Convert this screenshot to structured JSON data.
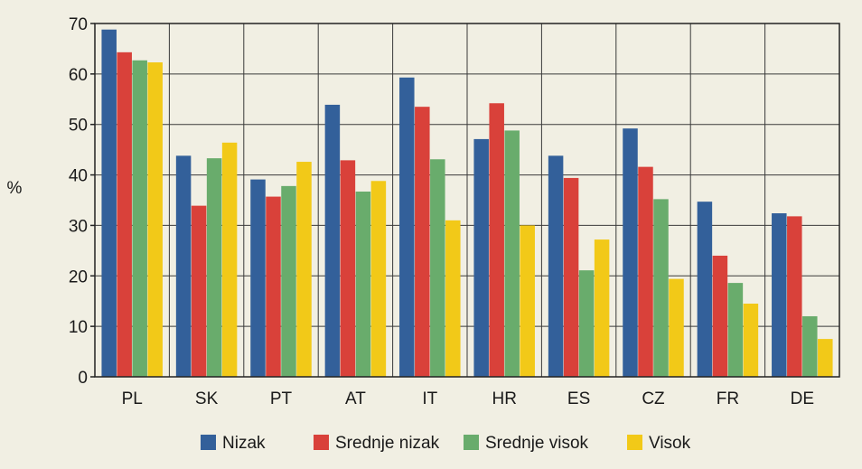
{
  "chart_data": {
    "type": "bar",
    "ylabel": "%",
    "ylim": [
      0,
      70
    ],
    "yticks": [
      0,
      10,
      20,
      30,
      40,
      50,
      60,
      70
    ],
    "grid": true,
    "legend_position": "bottom",
    "categories": [
      "PL",
      "SK",
      "PT",
      "AT",
      "IT",
      "HR",
      "ES",
      "CZ",
      "FR",
      "DE"
    ],
    "series": [
      {
        "name": "Nizak",
        "color": "#33609a",
        "values": [
          68.8,
          43.8,
          39.1,
          53.9,
          59.3,
          47.1,
          43.8,
          49.2,
          34.7,
          32.4
        ]
      },
      {
        "name": "Srednje nizak",
        "color": "#d9413a",
        "values": [
          64.3,
          33.9,
          35.7,
          42.9,
          53.5,
          54.2,
          39.4,
          41.6,
          24.0,
          31.8
        ]
      },
      {
        "name": "Srednje visok",
        "color": "#69ac6c",
        "values": [
          62.7,
          43.3,
          37.8,
          36.7,
          43.1,
          48.8,
          21.1,
          35.2,
          18.6,
          12.0
        ]
      },
      {
        "name": "Visok",
        "color": "#f2c918",
        "values": [
          62.3,
          46.4,
          42.6,
          38.8,
          31.0,
          30.0,
          27.2,
          19.4,
          14.5,
          7.5
        ]
      }
    ]
  }
}
